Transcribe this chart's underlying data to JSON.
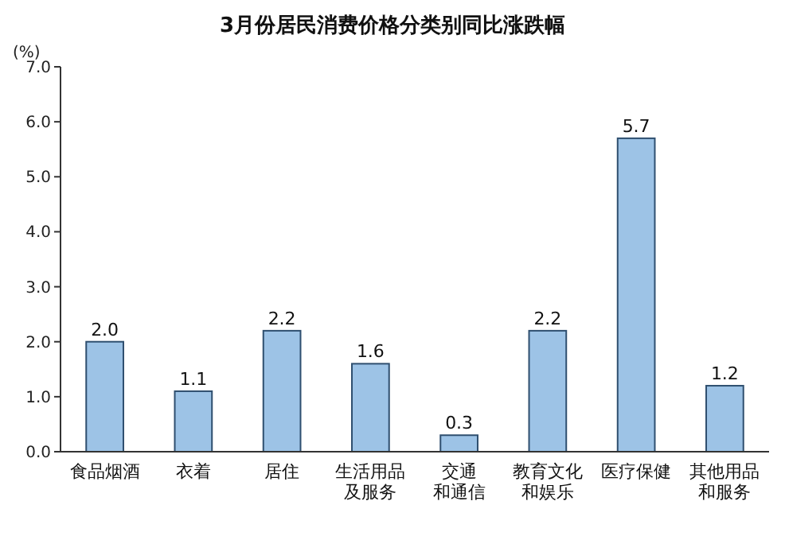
{
  "chart_data": {
    "type": "bar",
    "title": "3月份居民消费价格分类别同比涨跌幅",
    "ylabel": "(%)",
    "categories": [
      "食品烟酒",
      "衣着",
      "居住",
      "生活用品及服务",
      "交通和通信",
      "教育文化和娱乐",
      "医疗保健",
      "其他用品和服务"
    ],
    "values": [
      2.0,
      1.1,
      2.2,
      1.6,
      0.3,
      2.2,
      5.7,
      1.2
    ],
    "value_labels": [
      "2.0",
      "1.1",
      "2.2",
      "1.6",
      "0.3",
      "2.2",
      "5.7",
      "1.2"
    ],
    "color": "#9dc3e6",
    "ylim": [
      0,
      7
    ],
    "yticks": [
      {
        "value": 0,
        "label": "0.0"
      },
      {
        "value": 1,
        "label": "1.0"
      },
      {
        "value": 2,
        "label": "2.0"
      },
      {
        "value": 3,
        "label": "3.0"
      },
      {
        "value": 4,
        "label": "4.0"
      },
      {
        "value": 5,
        "label": "5.0"
      },
      {
        "value": 6,
        "label": "6.0"
      },
      {
        "value": 7,
        "label": "7.0"
      }
    ],
    "grid": false
  }
}
